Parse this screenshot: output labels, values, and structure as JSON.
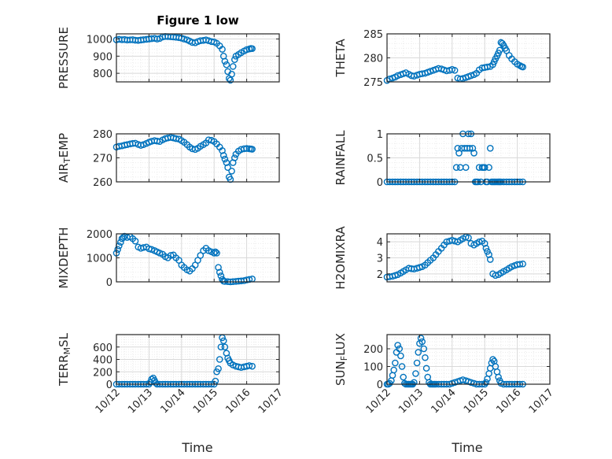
{
  "figure": {
    "title": "Figure 1 low"
  },
  "colors": {
    "marker": "#0072bd",
    "axis": "#262626",
    "grid": "#d9d9d9",
    "minor_grid": "#ebebeb"
  },
  "time_axis": {
    "ticks": [
      0,
      1,
      2,
      3,
      4,
      5
    ],
    "tick_labels": [
      "10/12",
      "10/13",
      "10/14",
      "10/15",
      "10/16",
      "10/17"
    ],
    "xlabel": "Time",
    "xlim": [
      0,
      5
    ]
  },
  "chart_data": [
    {
      "type": "scatter",
      "ylabel": "PRESSURE",
      "title": "Figure 1 low",
      "ylim": [
        750,
        1030
      ],
      "yticks": [
        800,
        900,
        1000
      ],
      "ytick_labels": [
        "800",
        "900",
        "1000"
      ],
      "grid": true,
      "x": [
        0.0,
        0.08,
        0.17,
        0.25,
        0.33,
        0.42,
        0.5,
        0.58,
        0.67,
        0.75,
        0.83,
        0.92,
        1.0,
        1.08,
        1.17,
        1.25,
        1.33,
        1.42,
        1.5,
        1.58,
        1.67,
        1.75,
        1.83,
        1.92,
        2.0,
        2.08,
        2.17,
        2.25,
        2.33,
        2.42,
        2.5,
        2.58,
        2.67,
        2.75,
        2.83,
        2.92,
        3.0,
        3.08,
        3.17,
        3.25,
        3.29,
        3.33,
        3.38,
        3.42,
        3.46,
        3.5,
        3.54,
        3.58,
        3.63,
        3.67,
        3.75,
        3.83,
        3.92,
        4.0,
        4.08,
        4.13,
        4.17
      ],
      "y": [
        995,
        998,
        996,
        997,
        994,
        995,
        996,
        993,
        992,
        994,
        996,
        998,
        1000,
        1002,
        1004,
        1000,
        1003,
        1012,
        1015,
        1014,
        1013,
        1012,
        1010,
        1008,
        1005,
        1000,
        995,
        988,
        980,
        978,
        985,
        990,
        992,
        995,
        990,
        985,
        983,
        975,
        960,
        940,
        900,
        870,
        850,
        810,
        770,
        760,
        795,
        840,
        880,
        900,
        910,
        920,
        930,
        938,
        942,
        945,
        944
      ]
    },
    {
      "type": "scatter",
      "ylabel": "THETA",
      "ylim": [
        275,
        285
      ],
      "yticks": [
        275,
        280,
        285
      ],
      "ytick_labels": [
        "275",
        "280",
        "285"
      ],
      "grid": true,
      "x": [
        0.0,
        0.08,
        0.17,
        0.25,
        0.33,
        0.42,
        0.5,
        0.58,
        0.67,
        0.75,
        0.83,
        0.92,
        1.0,
        1.08,
        1.17,
        1.25,
        1.33,
        1.42,
        1.5,
        1.58,
        1.67,
        1.75,
        1.83,
        1.92,
        2.0,
        2.08,
        2.17,
        2.25,
        2.33,
        2.42,
        2.5,
        2.58,
        2.67,
        2.75,
        2.83,
        2.92,
        3.0,
        3.08,
        3.17,
        3.25,
        3.29,
        3.33,
        3.38,
        3.42,
        3.46,
        3.5,
        3.54,
        3.58,
        3.63,
        3.67,
        3.75,
        3.83,
        3.92,
        4.0,
        4.08,
        4.13,
        4.17
      ],
      "y": [
        275.3,
        275.6,
        275.8,
        276.0,
        276.3,
        276.5,
        276.7,
        276.9,
        276.6,
        276.3,
        276.2,
        276.4,
        276.6,
        276.7,
        276.8,
        277.0,
        277.2,
        277.4,
        277.6,
        277.8,
        277.7,
        277.5,
        277.3,
        277.4,
        277.6,
        277.4,
        275.8,
        275.6,
        275.7,
        275.9,
        276.1,
        276.3,
        276.5,
        276.8,
        277.5,
        277.9,
        278.0,
        278.1,
        278.2,
        278.6,
        279.2,
        279.8,
        280.4,
        281.0,
        281.6,
        283.2,
        283.0,
        282.6,
        282.0,
        281.5,
        280.5,
        279.8,
        279.2,
        278.7,
        278.4,
        278.2,
        278.1
      ]
    },
    {
      "type": "scatter",
      "ylabel": "AIR_TEMP",
      "ylim": [
        260,
        280
      ],
      "yticks": [
        260,
        270,
        280
      ],
      "ytick_labels": [
        "260",
        "270",
        "280"
      ],
      "grid": true,
      "x": [
        0.0,
        0.08,
        0.17,
        0.25,
        0.33,
        0.42,
        0.5,
        0.58,
        0.67,
        0.75,
        0.83,
        0.92,
        1.0,
        1.08,
        1.17,
        1.25,
        1.33,
        1.42,
        1.5,
        1.58,
        1.67,
        1.75,
        1.83,
        1.92,
        2.0,
        2.08,
        2.17,
        2.25,
        2.33,
        2.42,
        2.5,
        2.58,
        2.67,
        2.75,
        2.83,
        2.92,
        3.0,
        3.08,
        3.17,
        3.25,
        3.29,
        3.33,
        3.38,
        3.42,
        3.46,
        3.5,
        3.54,
        3.58,
        3.63,
        3.67,
        3.75,
        3.83,
        3.92,
        4.0,
        4.08,
        4.13,
        4.17
      ],
      "y": [
        274.5,
        274.8,
        275.0,
        275.3,
        275.5,
        275.8,
        276.0,
        276.1,
        275.6,
        275.2,
        275.5,
        276.0,
        276.5,
        276.9,
        277.2,
        277.0,
        276.8,
        277.5,
        278.0,
        278.3,
        278.5,
        278.3,
        278.0,
        277.8,
        277.2,
        276.5,
        275.5,
        274.5,
        273.8,
        273.5,
        274.0,
        274.8,
        275.5,
        276.2,
        277.5,
        277.3,
        276.8,
        275.8,
        274.5,
        273.0,
        271.0,
        269.5,
        268.0,
        266.0,
        262.0,
        261.0,
        264.5,
        268.0,
        270.0,
        271.5,
        272.8,
        273.5,
        273.8,
        273.9,
        273.8,
        273.7,
        273.6
      ]
    },
    {
      "type": "scatter",
      "ylabel": "RAINFALL",
      "ylim": [
        0,
        1
      ],
      "yticks": [
        0,
        0.5,
        1
      ],
      "ytick_labels": [
        "0",
        "0.5",
        "1"
      ],
      "grid": true,
      "x": [
        0.0,
        0.08,
        0.17,
        0.25,
        0.33,
        0.42,
        0.5,
        0.58,
        0.67,
        0.75,
        0.83,
        0.92,
        1.0,
        1.08,
        1.17,
        1.25,
        1.33,
        1.42,
        1.5,
        1.58,
        1.67,
        1.75,
        1.83,
        1.92,
        2.0,
        2.08,
        2.13,
        2.17,
        2.21,
        2.25,
        2.29,
        2.33,
        2.38,
        2.42,
        2.46,
        2.5,
        2.54,
        2.58,
        2.63,
        2.67,
        2.71,
        2.75,
        2.79,
        2.83,
        2.88,
        2.92,
        2.96,
        3.0,
        3.04,
        3.08,
        3.13,
        3.17,
        3.21,
        3.25,
        3.29,
        3.33,
        3.38,
        3.42,
        3.46,
        3.5,
        3.58,
        3.67,
        3.75,
        3.83,
        3.92,
        4.0,
        4.08,
        4.17
      ],
      "y": [
        0,
        0,
        0,
        0,
        0,
        0,
        0,
        0,
        0,
        0,
        0,
        0,
        0,
        0,
        0,
        0,
        0,
        0,
        0,
        0,
        0,
        0,
        0,
        0,
        0,
        0,
        0.3,
        0.7,
        0.6,
        0.3,
        0.7,
        1.0,
        0.7,
        0.3,
        0.7,
        1.0,
        0.7,
        1.0,
        0.7,
        0.6,
        0,
        0,
        0,
        0.3,
        0,
        0.3,
        0.3,
        0.3,
        0,
        0,
        0.3,
        0.7,
        0,
        0,
        0,
        0,
        0,
        0,
        0,
        0,
        0,
        0,
        0,
        0,
        0,
        0,
        0,
        0
      ]
    },
    {
      "type": "scatter",
      "ylabel": "MIXDEPTH",
      "ylim": [
        0,
        2000
      ],
      "yticks": [
        0,
        1000,
        2000
      ],
      "ytick_labels": [
        "0",
        "1000",
        "2000"
      ],
      "grid": true,
      "x": [
        0.0,
        0.04,
        0.08,
        0.13,
        0.17,
        0.21,
        0.25,
        0.33,
        0.42,
        0.5,
        0.58,
        0.67,
        0.75,
        0.83,
        0.92,
        1.0,
        1.08,
        1.17,
        1.25,
        1.33,
        1.42,
        1.5,
        1.58,
        1.67,
        1.75,
        1.83,
        1.92,
        2.0,
        2.08,
        2.17,
        2.25,
        2.33,
        2.42,
        2.5,
        2.58,
        2.67,
        2.75,
        2.83,
        2.92,
        3.0,
        3.04,
        3.08,
        3.13,
        3.17,
        3.21,
        3.25,
        3.29,
        3.33,
        3.42,
        3.5,
        3.58,
        3.67,
        3.75,
        3.83,
        3.92,
        4.0,
        4.08,
        4.17
      ],
      "y": [
        1200,
        1350,
        1500,
        1650,
        1800,
        1850,
        1900,
        1850,
        1880,
        1800,
        1700,
        1450,
        1400,
        1430,
        1450,
        1380,
        1350,
        1300,
        1250,
        1200,
        1150,
        1050,
        1000,
        1100,
        1120,
        1000,
        900,
        700,
        600,
        500,
        450,
        550,
        700,
        900,
        1100,
        1300,
        1400,
        1300,
        1250,
        1200,
        1250,
        1200,
        600,
        400,
        250,
        100,
        30,
        20,
        10,
        0,
        10,
        20,
        30,
        40,
        50,
        80,
        100,
        120
      ]
    },
    {
      "type": "scatter",
      "ylabel": "H2OMIXRA",
      "ylim": [
        1.5,
        4.5
      ],
      "yticks": [
        2,
        3,
        4
      ],
      "ytick_labels": [
        "2",
        "3",
        "4"
      ],
      "grid": true,
      "x": [
        0.0,
        0.08,
        0.17,
        0.25,
        0.33,
        0.42,
        0.5,
        0.58,
        0.67,
        0.75,
        0.83,
        0.92,
        1.0,
        1.08,
        1.17,
        1.25,
        1.33,
        1.42,
        1.5,
        1.58,
        1.67,
        1.75,
        1.83,
        1.92,
        2.0,
        2.08,
        2.17,
        2.25,
        2.33,
        2.42,
        2.5,
        2.58,
        2.67,
        2.75,
        2.83,
        2.92,
        3.0,
        3.04,
        3.08,
        3.13,
        3.17,
        3.25,
        3.33,
        3.42,
        3.5,
        3.58,
        3.67,
        3.75,
        3.83,
        3.92,
        4.0,
        4.08,
        4.17
      ],
      "y": [
        1.8,
        1.82,
        1.85,
        1.9,
        1.95,
        2.05,
        2.15,
        2.25,
        2.35,
        2.32,
        2.3,
        2.35,
        2.4,
        2.45,
        2.55,
        2.7,
        2.85,
        3.0,
        3.2,
        3.4,
        3.6,
        3.8,
        4.0,
        4.05,
        4.1,
        4.05,
        4.0,
        4.1,
        4.2,
        4.3,
        4.25,
        3.9,
        3.8,
        3.9,
        4.0,
        4.05,
        3.9,
        3.6,
        3.4,
        3.2,
        2.9,
        2.0,
        1.9,
        1.95,
        2.05,
        2.15,
        2.25,
        2.35,
        2.45,
        2.52,
        2.58,
        2.6,
        2.62
      ]
    },
    {
      "type": "scatter",
      "ylabel": "TERR_MSL",
      "ylim": [
        0,
        800
      ],
      "yticks": [
        0,
        200,
        400,
        600
      ],
      "ytick_labels": [
        "0",
        "200",
        "400",
        "600"
      ],
      "grid": true,
      "x": [
        0.0,
        0.08,
        0.17,
        0.25,
        0.33,
        0.42,
        0.5,
        0.58,
        0.67,
        0.75,
        0.83,
        0.92,
        1.0,
        1.04,
        1.08,
        1.13,
        1.17,
        1.21,
        1.25,
        1.33,
        1.42,
        1.5,
        1.58,
        1.67,
        1.75,
        1.83,
        1.92,
        2.0,
        2.08,
        2.17,
        2.25,
        2.33,
        2.42,
        2.5,
        2.58,
        2.67,
        2.75,
        2.83,
        2.92,
        3.0,
        3.04,
        3.08,
        3.13,
        3.17,
        3.21,
        3.25,
        3.29,
        3.33,
        3.38,
        3.42,
        3.46,
        3.5,
        3.58,
        3.67,
        3.75,
        3.83,
        3.92,
        4.0,
        4.08,
        4.17
      ],
      "y": [
        0,
        0,
        0,
        0,
        0,
        0,
        0,
        0,
        0,
        0,
        0,
        0,
        0,
        30,
        80,
        100,
        60,
        20,
        0,
        0,
        0,
        0,
        0,
        0,
        0,
        0,
        0,
        0,
        0,
        0,
        0,
        0,
        0,
        0,
        0,
        0,
        0,
        0,
        0,
        0,
        50,
        200,
        250,
        400,
        600,
        750,
        700,
        600,
        500,
        420,
        380,
        340,
        310,
        290,
        280,
        270,
        280,
        290,
        300,
        290
      ]
    },
    {
      "type": "scatter",
      "ylabel": "SUN_FLUX",
      "ylim": [
        0,
        280
      ],
      "yticks": [
        0,
        100,
        200
      ],
      "ytick_labels": [
        "0",
        "100",
        "200"
      ],
      "grid": true,
      "x": [
        0.0,
        0.04,
        0.08,
        0.13,
        0.17,
        0.21,
        0.25,
        0.29,
        0.33,
        0.38,
        0.42,
        0.46,
        0.5,
        0.54,
        0.58,
        0.63,
        0.67,
        0.71,
        0.75,
        0.79,
        0.83,
        0.88,
        0.92,
        0.96,
        1.0,
        1.04,
        1.08,
        1.13,
        1.17,
        1.21,
        1.25,
        1.29,
        1.33,
        1.38,
        1.42,
        1.46,
        1.5,
        1.58,
        1.67,
        1.75,
        1.83,
        1.92,
        2.0,
        2.08,
        2.17,
        2.25,
        2.33,
        2.42,
        2.5,
        2.58,
        2.67,
        2.75,
        2.83,
        2.92,
        3.0,
        3.04,
        3.08,
        3.13,
        3.17,
        3.21,
        3.25,
        3.29,
        3.33,
        3.38,
        3.42,
        3.46,
        3.5,
        3.58,
        3.67,
        3.75,
        3.83,
        3.92,
        4.0,
        4.08,
        4.17
      ],
      "y": [
        0,
        0,
        5,
        20,
        50,
        80,
        120,
        180,
        220,
        200,
        160,
        100,
        40,
        5,
        0,
        0,
        0,
        0,
        0,
        0,
        10,
        60,
        120,
        180,
        230,
        260,
        240,
        200,
        150,
        90,
        40,
        10,
        0,
        0,
        0,
        0,
        0,
        0,
        0,
        0,
        0,
        0,
        5,
        10,
        15,
        20,
        25,
        20,
        15,
        10,
        5,
        0,
        0,
        0,
        0,
        10,
        30,
        60,
        90,
        120,
        140,
        130,
        100,
        70,
        40,
        20,
        5,
        0,
        0,
        0,
        0,
        0,
        0,
        0,
        0
      ]
    }
  ]
}
